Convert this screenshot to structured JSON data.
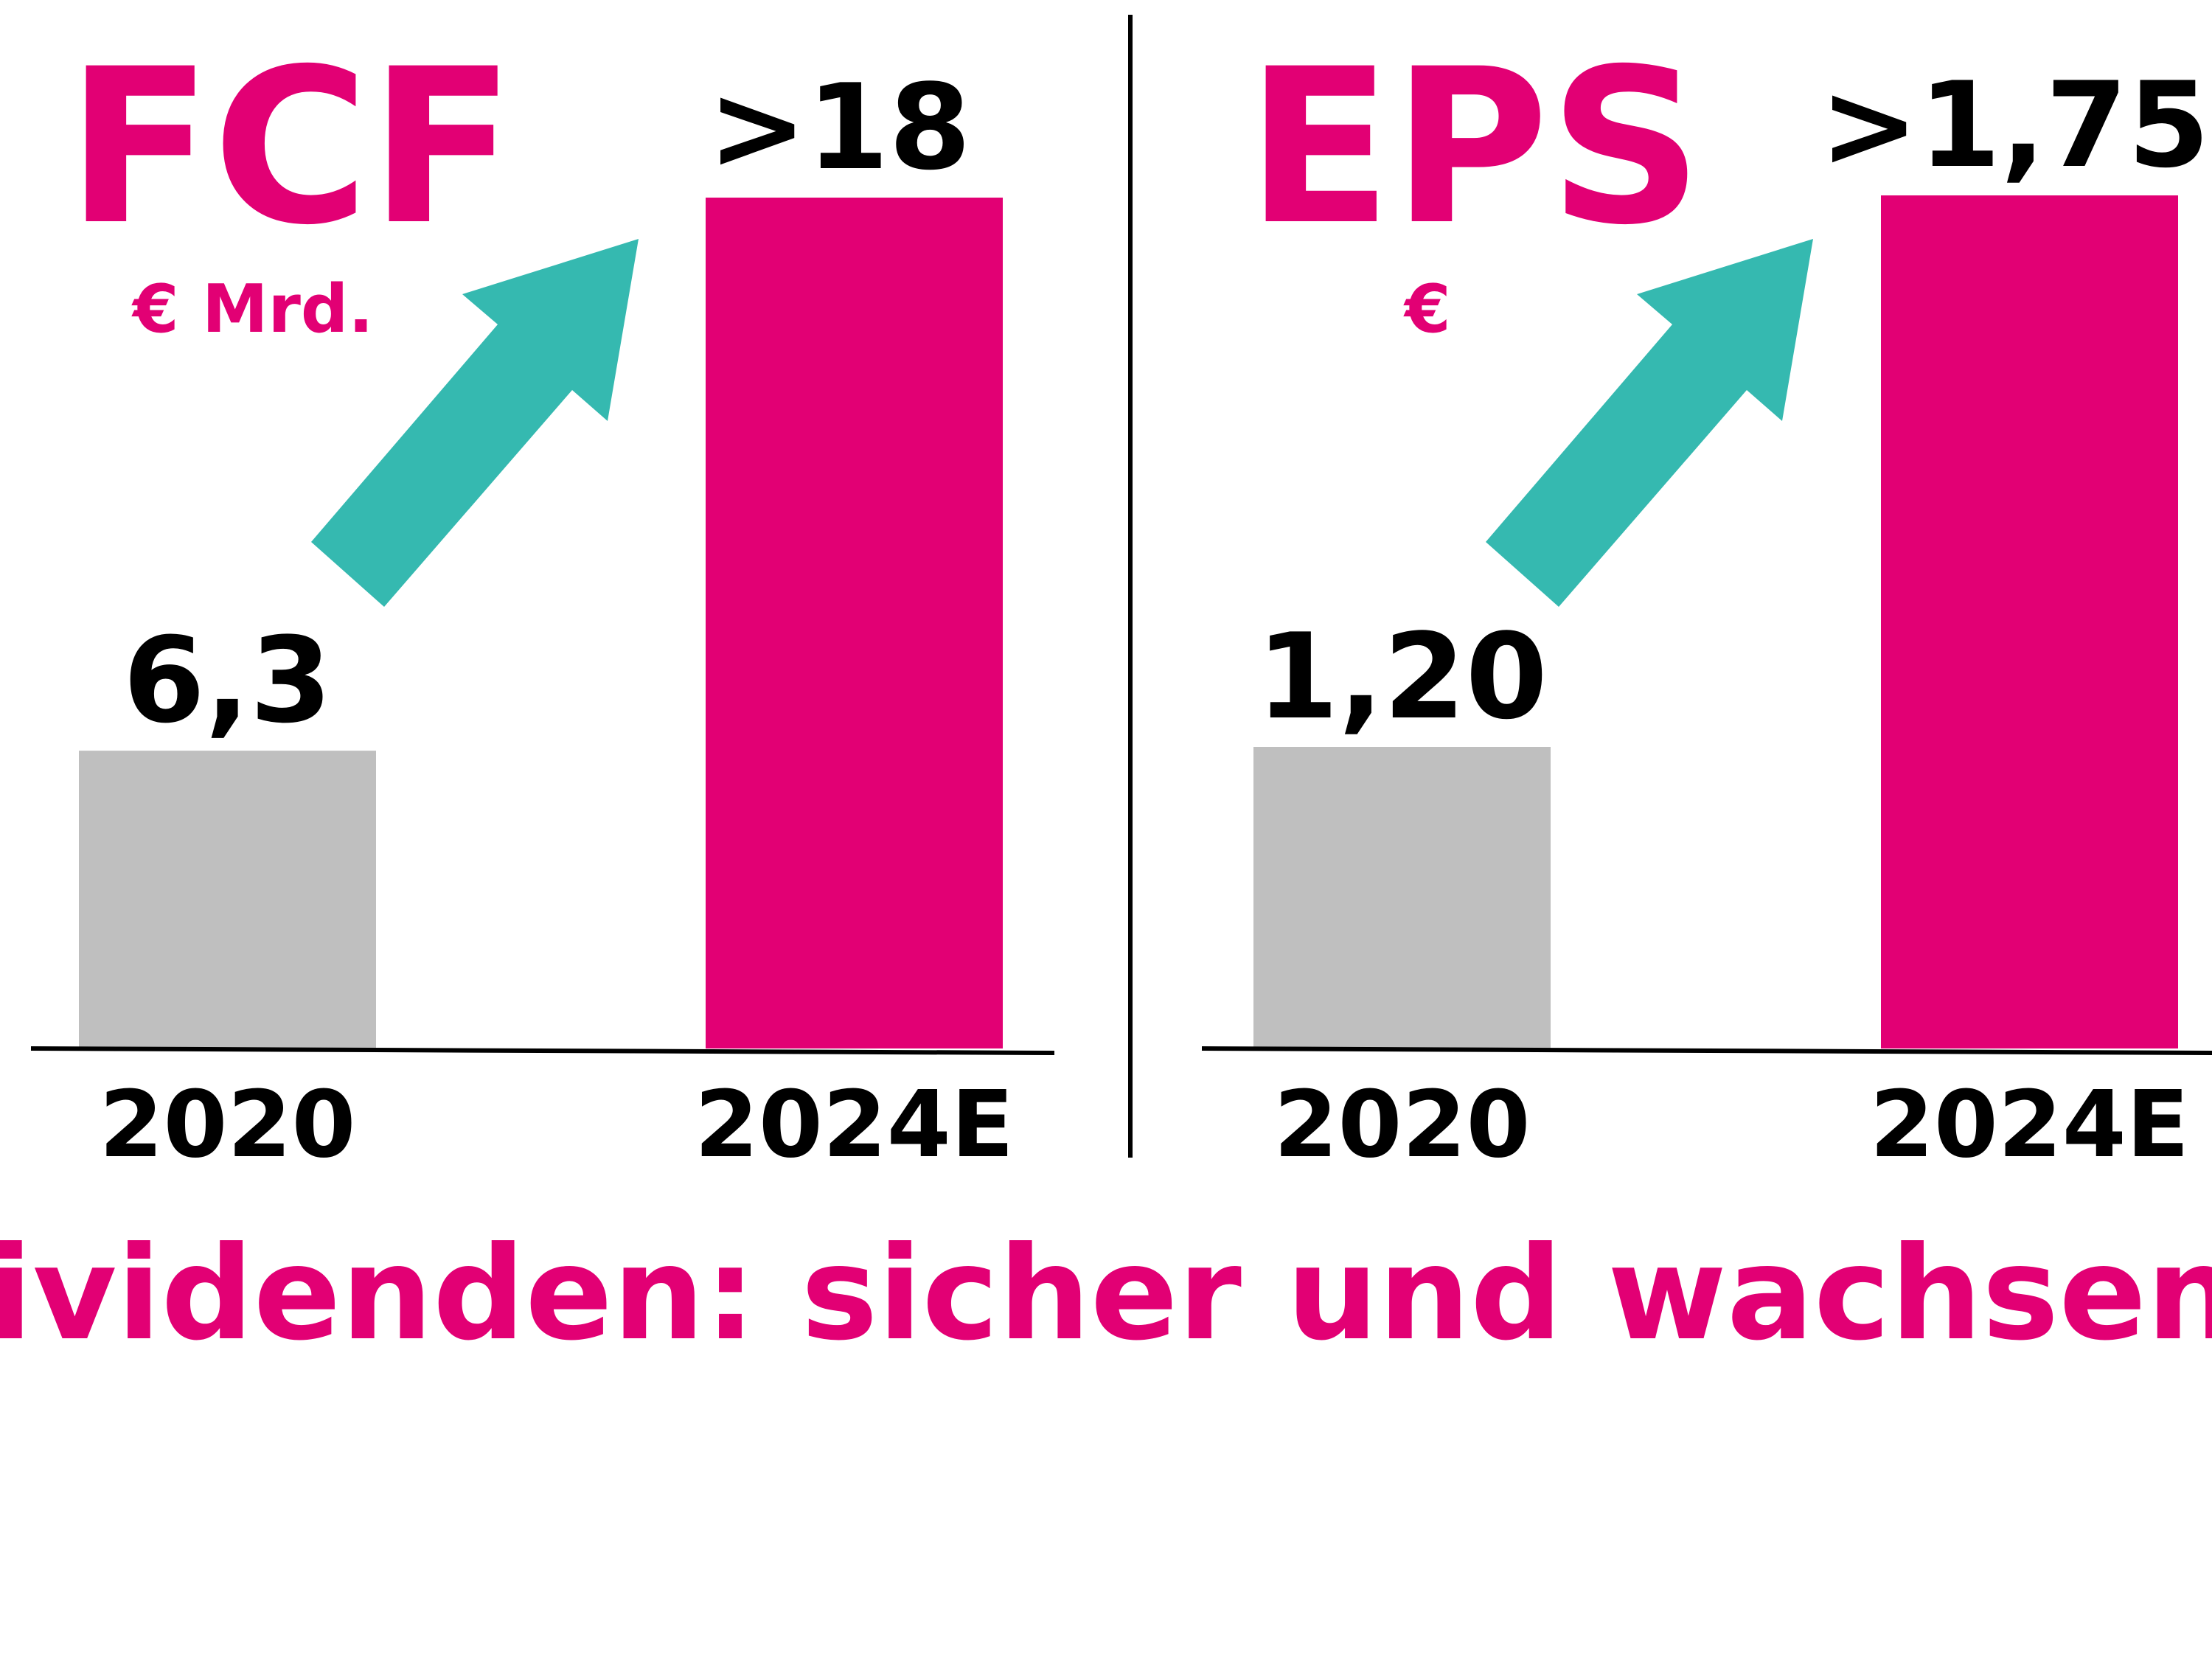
{
  "colors": {
    "magenta": "#E20074",
    "grey": "#BFBFBF",
    "teal": "#35B9B0",
    "axis": "#000000"
  },
  "chart_data": [
    {
      "type": "bar",
      "title": "FCF",
      "unit": "€ Mrd.",
      "categories": [
        "2020",
        "2024E"
      ],
      "values": [
        6.3,
        18
      ],
      "value_labels": [
        "6,3",
        ">18"
      ],
      "bar_colors": [
        "#BFBFBF",
        "#E20074"
      ],
      "arrow": "up-right",
      "ylim": [
        0,
        21
      ]
    },
    {
      "type": "bar",
      "title": "EPS",
      "unit": "€",
      "categories": [
        "2020",
        "2024E"
      ],
      "values": [
        1.2,
        1.75
      ],
      "value_labels": [
        "1,20",
        ">1,75"
      ],
      "bar_colors": [
        "#BFBFBF",
        "#E20074"
      ],
      "arrow": "up-right"
    }
  ],
  "footer": "Dividenden: sicher und wachsend"
}
